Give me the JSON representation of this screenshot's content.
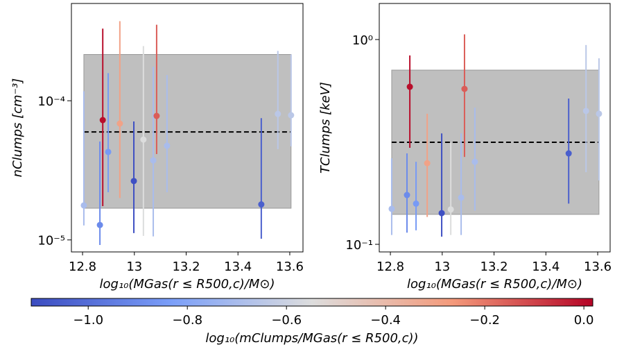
{
  "chart_data": [
    {
      "type": "scatter",
      "log_y": true,
      "xlabel": "log₁₀(MGas(r ≤ R500,c)/M⊙)",
      "ylabel": "nClumps [cm⁻³]",
      "xlim": [
        12.757,
        13.651
      ],
      "ylim": [
        8.2e-06,
        0.0005
      ],
      "xticks": [
        12.8,
        13.0,
        13.2,
        13.4,
        13.6
      ],
      "yticks": [
        {
          "value": 1e-05,
          "label": "10⁻⁵"
        },
        {
          "value": 0.0001,
          "label": "10⁻⁴"
        }
      ],
      "band": [
        1.69e-05,
        0.000215
      ],
      "band_color": "#bfbfbf",
      "reference": 5.97e-05,
      "x": [
        12.805,
        12.867,
        12.878,
        12.899,
        12.944,
        12.998,
        13.035,
        13.073,
        13.086,
        13.126,
        13.49,
        13.554,
        13.605
      ],
      "values": [
        1.77e-05,
        1.28e-05,
        7.26e-05,
        4.29e-05,
        6.86e-05,
        2.65e-05,
        5.26e-05,
        3.73e-05,
        7.78e-05,
        4.75e-05,
        1.8e-05,
        8.04e-05,
        7.87e-05
      ],
      "err_low": [
        1.27e-05,
        9.2e-06,
        1.75e-05,
        2.2e-05,
        2e-05,
        1.12e-05,
        1.07e-05,
        1.06e-05,
        4.14e-05,
        2.2e-05,
        1.02e-05,
        4.49e-05,
        4.7e-05
      ],
      "err_high": [
        0.000117,
        5.1e-05,
        0.00033,
        0.000158,
        0.000373,
        7.1e-05,
        0.000247,
        0.000175,
        0.000352,
        0.000153,
        7.5e-05,
        0.000228,
        0.000215
      ],
      "c": [
        -0.7,
        -0.9,
        0.0,
        -0.85,
        -0.3,
        -1.1,
        -0.55,
        -0.7,
        -0.15,
        -0.7,
        -1.05,
        -0.65,
        -0.65
      ]
    },
    {
      "type": "scatter",
      "log_y": true,
      "xlabel": "log₁₀(MGas(r ≤ R500,c)/M⊙)",
      "ylabel": "TClumps [keV]",
      "xlim": [
        12.757,
        13.648
      ],
      "ylim": [
        0.0918,
        1.5
      ],
      "xticks": [
        12.8,
        13.0,
        13.2,
        13.4,
        13.6
      ],
      "yticks": [
        {
          "value": 0.1,
          "label": "10⁻¹"
        },
        {
          "value": 1,
          "label": "10⁰"
        }
      ],
      "band": [
        0.14,
        0.709
      ],
      "band_color": "#bfbfbf",
      "reference": 0.315,
      "x": [
        12.805,
        12.864,
        12.875,
        12.899,
        12.942,
        12.998,
        13.033,
        13.073,
        13.086,
        13.126,
        13.488,
        13.555,
        13.605
      ],
      "values": [
        0.149,
        0.174,
        0.588,
        0.158,
        0.249,
        0.142,
        0.148,
        0.169,
        0.574,
        0.253,
        0.278,
        0.448,
        0.434
      ],
      "err_low": [
        0.111,
        0.114,
        0.296,
        0.117,
        0.136,
        0.109,
        0.111,
        0.111,
        0.267,
        0.146,
        0.158,
        0.225,
        0.205
      ],
      "err_high": [
        0.263,
        0.278,
        0.836,
        0.253,
        0.434,
        0.348,
        0.313,
        0.348,
        1.06,
        0.465,
        0.515,
        0.94,
        0.81
      ],
      "c": [
        -0.7,
        -0.9,
        0.0,
        -0.85,
        -0.3,
        -1.1,
        -0.55,
        -0.7,
        -0.15,
        -0.7,
        -1.05,
        -0.65,
        -0.65
      ]
    }
  ],
  "colorbar": {
    "label": "log₁₀(mClumps/MGas(r ≤ R500,c))",
    "clim": [
      -1.115,
      0.018
    ],
    "ticks": [
      {
        "value": -1.0,
        "label": "−1.0"
      },
      {
        "value": -0.8,
        "label": "−0.8"
      },
      {
        "value": -0.6,
        "label": "−0.6"
      },
      {
        "value": -0.4,
        "label": "−0.4"
      },
      {
        "value": -0.2,
        "label": "−0.2"
      },
      {
        "value": 0.0,
        "label": "0.0"
      }
    ],
    "colormap": [
      "#3b4cc0",
      "#7b9ff9",
      "#dddddd",
      "#f49a7b",
      "#b40426"
    ]
  }
}
